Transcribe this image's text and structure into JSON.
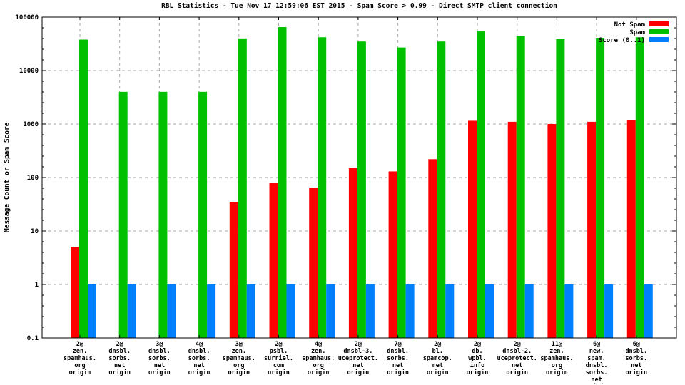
{
  "window": {
    "background": "#ffffff"
  },
  "chart_data": {
    "type": "bar",
    "title": "RBL Statistics - Tue Nov 17 12:59:06 EST 2015 - Spam Score > 0.99 - Direct SMTP client connection",
    "xlabel": "",
    "ylabel": "Message Count or Spam Score",
    "y_scale": "log",
    "ylim": [
      0.1,
      100000
    ],
    "y_ticks": [
      100000,
      10000,
      1000,
      100,
      10,
      1,
      0.1
    ],
    "y_tick_labels": [
      "100000",
      "10000",
      "1000",
      "100",
      "10",
      "1",
      "0.1"
    ],
    "grid": true,
    "legend_position": "top-right-inside",
    "colors": {
      "not_spam": "#ff0000",
      "spam": "#00c000",
      "score": "#0080ff",
      "grid": "#aaaaaa",
      "border": "#000000"
    },
    "categories": [
      [
        "2@",
        "zen.",
        "spamhaus.",
        "org",
        "origin"
      ],
      [
        "2@",
        "dnsbl.",
        "sorbs.",
        "net",
        "origin"
      ],
      [
        "3@",
        "dnsbl.",
        "sorbs.",
        "net",
        "origin"
      ],
      [
        "4@",
        "dnsbl.",
        "sorbs.",
        "net",
        "origin"
      ],
      [
        "3@",
        "zen.",
        "spamhaus.",
        "org",
        "origin"
      ],
      [
        "2@",
        "psbl.",
        "surriel.",
        "com",
        "origin"
      ],
      [
        "4@",
        "zen.",
        "spamhaus.",
        "org",
        "origin"
      ],
      [
        "2@",
        "dnsbl-3.",
        "uceprotect.",
        "net",
        "origin"
      ],
      [
        "7@",
        "dnsbl.",
        "sorbs.",
        "net",
        "origin"
      ],
      [
        "2@",
        "bl.",
        "spamcop.",
        "net",
        "origin"
      ],
      [
        "2@",
        "db.",
        "wpbl.",
        "info",
        "origin"
      ],
      [
        "2@",
        "dnsbl-2.",
        "uceprotect.",
        "net",
        "origin"
      ],
      [
        "11@",
        "zen.",
        "spamhaus.",
        "org",
        "origin"
      ],
      [
        "6@",
        "new.",
        "spam.",
        "dnsbl.",
        "sorbs.",
        "net",
        "origin"
      ],
      [
        "6@",
        "dnsbl.",
        "sorbs.",
        "net",
        "origin"
      ]
    ],
    "series": [
      {
        "name": "Not Spam",
        "color": "#ff0000",
        "values": [
          5,
          0,
          0,
          0,
          35,
          80,
          65,
          150,
          130,
          220,
          1150,
          1100,
          1000,
          1100,
          1200
        ]
      },
      {
        "name": "Spam",
        "color": "#00c000",
        "values": [
          38000,
          4000,
          4000,
          4000,
          40000,
          65000,
          42000,
          35000,
          27000,
          35000,
          54000,
          45000,
          39000,
          41000,
          42000
        ]
      },
      {
        "name": "Score (0..1)",
        "color": "#0080ff",
        "values": [
          1,
          1,
          1,
          1,
          1,
          1,
          1,
          1,
          1,
          1,
          1,
          1,
          1,
          1,
          1
        ]
      }
    ]
  }
}
